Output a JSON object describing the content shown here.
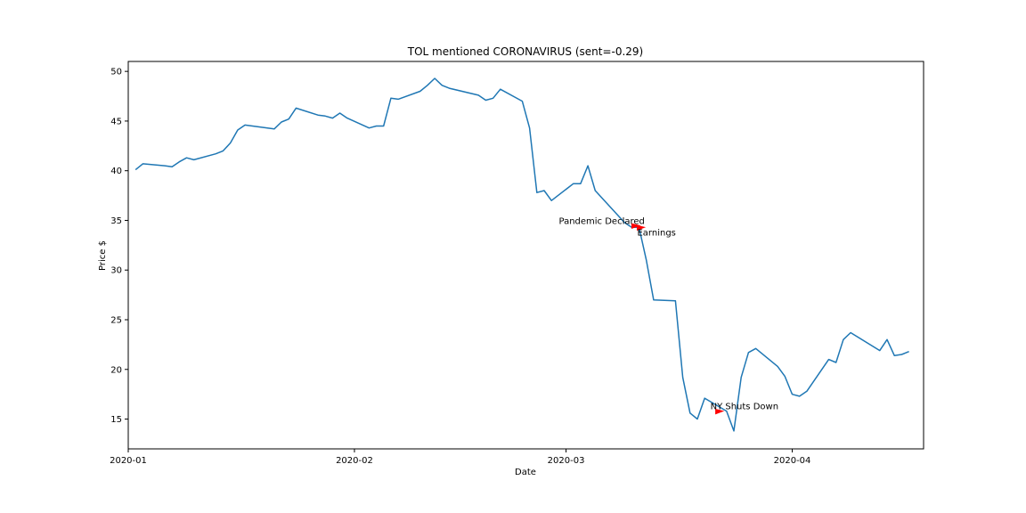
{
  "chart_data": {
    "type": "line",
    "title": "TOL mentioned CORONAVIRUS (sent=-0.29)",
    "xlabel": "Date",
    "ylabel": "Price $",
    "xlim": [
      "2020-01-01",
      "2020-04-19"
    ],
    "ylim": [
      12,
      51
    ],
    "x_ticks": [
      "2020-01-01",
      "2020-02-01",
      "2020-03-01",
      "2020-04-01"
    ],
    "x_tick_labels": [
      "2020-01",
      "2020-02",
      "2020-03",
      "2020-04"
    ],
    "y_ticks": [
      15,
      20,
      25,
      30,
      35,
      40,
      45,
      50
    ],
    "y_tick_labels": [
      "15",
      "20",
      "25",
      "30",
      "35",
      "40",
      "45",
      "50"
    ],
    "grid": false,
    "legend": "none",
    "series": [
      {
        "color": "#1f77b4",
        "points": [
          [
            "2020-01-02",
            40.1
          ],
          [
            "2020-01-03",
            40.7
          ],
          [
            "2020-01-06",
            40.5
          ],
          [
            "2020-01-07",
            40.4
          ],
          [
            "2020-01-08",
            40.9
          ],
          [
            "2020-01-09",
            41.3
          ],
          [
            "2020-01-10",
            41.1
          ],
          [
            "2020-01-13",
            41.7
          ],
          [
            "2020-01-14",
            42.0
          ],
          [
            "2020-01-15",
            42.8
          ],
          [
            "2020-01-16",
            44.1
          ],
          [
            "2020-01-17",
            44.6
          ],
          [
            "2020-01-21",
            44.2
          ],
          [
            "2020-01-22",
            44.9
          ],
          [
            "2020-01-23",
            45.2
          ],
          [
            "2020-01-24",
            46.3
          ],
          [
            "2020-01-27",
            45.6
          ],
          [
            "2020-01-28",
            45.5
          ],
          [
            "2020-01-29",
            45.3
          ],
          [
            "2020-01-30",
            45.8
          ],
          [
            "2020-01-31",
            45.3
          ],
          [
            "2020-02-03",
            44.3
          ],
          [
            "2020-02-04",
            44.5
          ],
          [
            "2020-02-05",
            44.5
          ],
          [
            "2020-02-06",
            47.3
          ],
          [
            "2020-02-07",
            47.2
          ],
          [
            "2020-02-10",
            48.0
          ],
          [
            "2020-02-11",
            48.6
          ],
          [
            "2020-02-12",
            49.3
          ],
          [
            "2020-02-13",
            48.6
          ],
          [
            "2020-02-14",
            48.3
          ],
          [
            "2020-02-18",
            47.6
          ],
          [
            "2020-02-19",
            47.1
          ],
          [
            "2020-02-20",
            47.3
          ],
          [
            "2020-02-21",
            48.2
          ],
          [
            "2020-02-24",
            47.0
          ],
          [
            "2020-02-25",
            44.3
          ],
          [
            "2020-02-26",
            37.8
          ],
          [
            "2020-02-27",
            38.0
          ],
          [
            "2020-02-28",
            37.0
          ],
          [
            "2020-03-02",
            38.7
          ],
          [
            "2020-03-03",
            38.7
          ],
          [
            "2020-03-04",
            40.5
          ],
          [
            "2020-03-05",
            38.0
          ],
          [
            "2020-03-09",
            34.8
          ],
          [
            "2020-03-10",
            34.3
          ],
          [
            "2020-03-11",
            34.3
          ],
          [
            "2020-03-12",
            31.0
          ],
          [
            "2020-03-13",
            27.0
          ],
          [
            "2020-03-16",
            26.9
          ],
          [
            "2020-03-17",
            19.2
          ],
          [
            "2020-03-18",
            15.6
          ],
          [
            "2020-03-19",
            15.0
          ],
          [
            "2020-03-20",
            17.1
          ],
          [
            "2020-03-23",
            15.8
          ],
          [
            "2020-03-24",
            13.8
          ],
          [
            "2020-03-25",
            19.2
          ],
          [
            "2020-03-26",
            21.7
          ],
          [
            "2020-03-27",
            22.1
          ],
          [
            "2020-03-30",
            20.3
          ],
          [
            "2020-03-31",
            19.3
          ],
          [
            "2020-04-01",
            17.5
          ],
          [
            "2020-04-02",
            17.3
          ],
          [
            "2020-04-03",
            17.8
          ],
          [
            "2020-04-06",
            21.0
          ],
          [
            "2020-04-07",
            20.7
          ],
          [
            "2020-04-08",
            23.0
          ],
          [
            "2020-04-09",
            23.7
          ],
          [
            "2020-04-13",
            21.9
          ],
          [
            "2020-04-14",
            23.0
          ],
          [
            "2020-04-15",
            21.4
          ],
          [
            "2020-04-16",
            21.5
          ],
          [
            "2020-04-17",
            21.8
          ]
        ]
      }
    ],
    "annotations": [
      {
        "text": "Pandemic Declared",
        "x": "2020-03-11",
        "y": 34.3
      },
      {
        "text": "Earnings",
        "x": "2020-03-11",
        "y": 34.3
      },
      {
        "text": "NY Shuts Down",
        "x": "2020-03-22",
        "y": 15.8
      }
    ],
    "annotation_marker_color": "#ff0000"
  }
}
